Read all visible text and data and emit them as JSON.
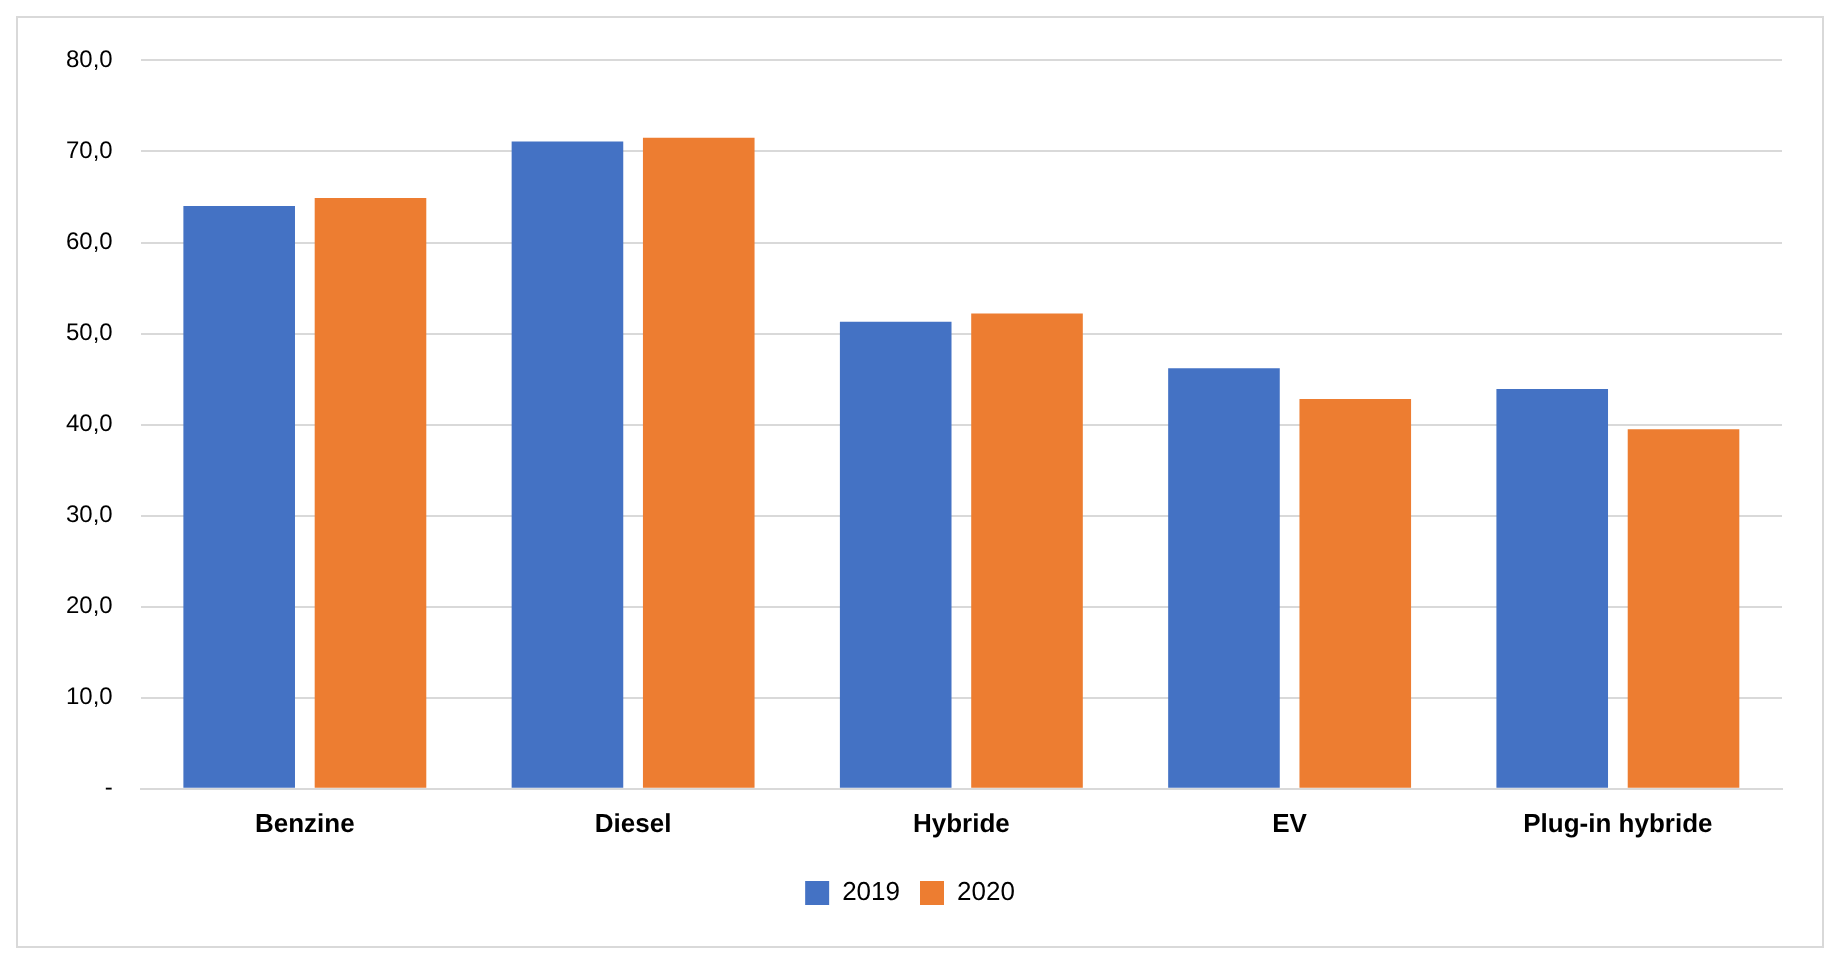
{
  "chart_data": {
    "type": "bar",
    "categories": [
      "Benzine",
      "Diesel",
      "Hybride",
      "EV",
      "Plug-in hybride"
    ],
    "series": [
      {
        "name": "2019",
        "color": "#4472c4",
        "values": [
          64.0,
          71.1,
          51.3,
          46.2,
          43.9
        ]
      },
      {
        "name": "2020",
        "color": "#ed7d31",
        "values": [
          64.9,
          71.5,
          52.2,
          42.8,
          39.5
        ]
      }
    ],
    "ylim": [
      0,
      80
    ],
    "yticks": [
      {
        "value": 0,
        "label": "-"
      },
      {
        "value": 10,
        "label": "10,0"
      },
      {
        "value": 20,
        "label": "20,0"
      },
      {
        "value": 30,
        "label": "30,0"
      },
      {
        "value": 40,
        "label": "40,0"
      },
      {
        "value": 50,
        "label": "50,0"
      },
      {
        "value": 60,
        "label": "60,0"
      },
      {
        "value": 70,
        "label": "70,0"
      },
      {
        "value": 80,
        "label": "80,0"
      }
    ],
    "grid": "y",
    "legend": "bottom"
  }
}
